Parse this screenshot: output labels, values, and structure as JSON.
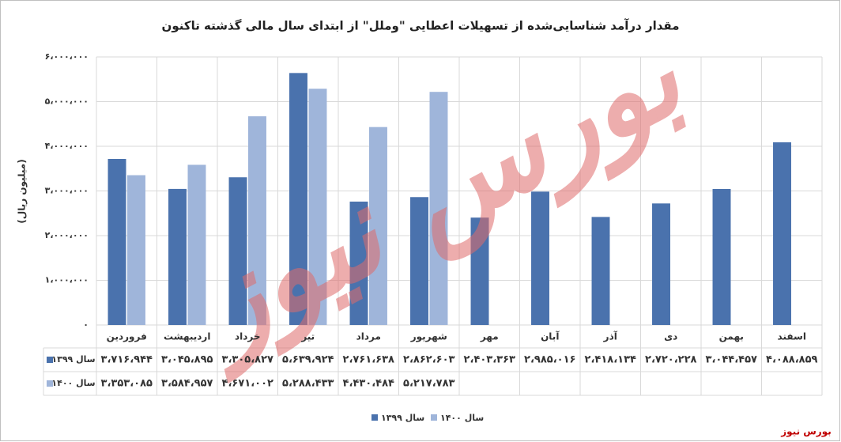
{
  "chart_data": {
    "type": "bar",
    "title": "مقدار درآمد شناسایی‌شده از تسهیلات اعطایی \"وملل\" از ابتدای سال مالی گذشته تاکنون",
    "ylabel": "(میلیون ریال)",
    "categories": [
      "فروردین",
      "اردیبهشت",
      "خرداد",
      "تیر",
      "مرداد",
      "شهریور",
      "مهر",
      "آبان",
      "آذر",
      "دی",
      "بهمن",
      "اسفند"
    ],
    "series": [
      {
        "name": "سال ۱۳۹۹",
        "color": "#4a72ad",
        "values": [
          3716944,
          3045895,
          3305827,
          5639924,
          2761638,
          2862603,
          2403363,
          2985016,
          2418134,
          2720228,
          3044457,
          4088859
        ],
        "value_labels": [
          "۳،۷۱۶،۹۴۴",
          "۳،۰۴۵،۸۹۵",
          "۳،۳۰۵،۸۲۷",
          "۵،۶۳۹،۹۲۴",
          "۲،۷۶۱،۶۳۸",
          "۲،۸۶۲،۶۰۳",
          "۲،۴۰۳،۳۶۳",
          "۲،۹۸۵،۰۱۶",
          "۲،۴۱۸،۱۳۴",
          "۲،۷۲۰،۲۲۸",
          "۳،۰۴۴،۴۵۷",
          "۴،۰۸۸،۸۵۹"
        ]
      },
      {
        "name": "سال ۱۴۰۰",
        "color": "#9fb5da",
        "values": [
          3353085,
          3584957,
          4671002,
          5288433,
          4430484,
          5217783,
          null,
          null,
          null,
          null,
          null,
          null
        ],
        "value_labels": [
          "۳،۳۵۳،۰۸۵",
          "۳،۵۸۴،۹۵۷",
          "۴،۶۷۱،۰۰۲",
          "۵،۲۸۸،۴۳۳",
          "۴،۴۳۰،۴۸۴",
          "۵،۲۱۷،۷۸۳",
          null,
          null,
          null,
          null,
          null,
          null
        ]
      }
    ],
    "ylim": [
      0,
      6000000
    ],
    "yticks": [
      {
        "value": 0,
        "label": "۰"
      },
      {
        "value": 1000000,
        "label": "۱،۰۰۰،۰۰۰"
      },
      {
        "value": 2000000,
        "label": "۲،۰۰۰،۰۰۰"
      },
      {
        "value": 3000000,
        "label": "۳،۰۰۰،۰۰۰"
      },
      {
        "value": 4000000,
        "label": "۴،۰۰۰،۰۰۰"
      },
      {
        "value": 5000000,
        "label": "۵،۰۰۰،۰۰۰"
      },
      {
        "value": 6000000,
        "label": "۶،۰۰۰،۰۰۰"
      }
    ],
    "grid": true,
    "watermark": "بورس نیوز",
    "source": "بورس نیوز"
  }
}
